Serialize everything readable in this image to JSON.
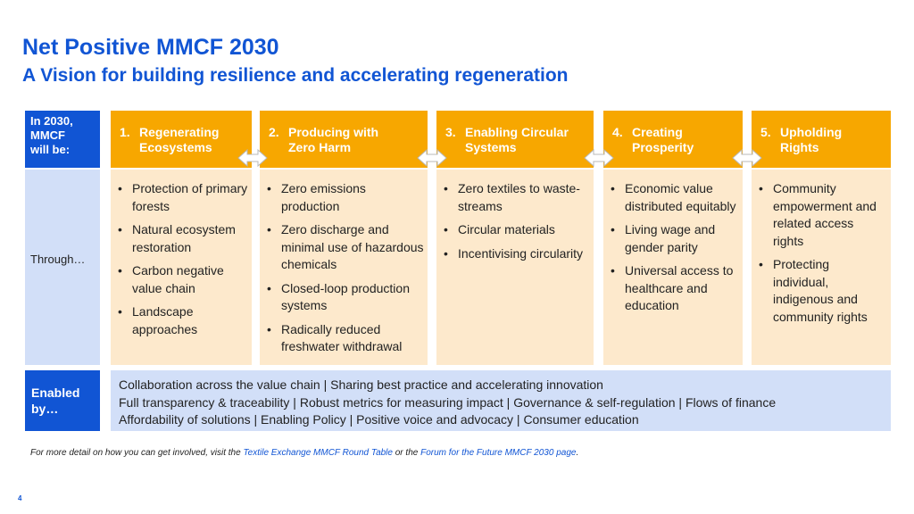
{
  "title": "Net Positive MMCF 2030",
  "subtitle": "A Vision for building resilience and accelerating regeneration",
  "side_labels": {
    "in_2030": "In 2030,\nMMCF\nwill be:",
    "through": "Through…",
    "enabled_by": "Enabled\nby…"
  },
  "pillars": [
    {
      "number": "1.",
      "title": "Regenerating\nEcosystems",
      "items": [
        "Protection of primary forests",
        "Natural ecosystem restoration",
        "Carbon negative value chain",
        "Landscape approaches"
      ]
    },
    {
      "number": "2.",
      "title": "Producing with\nZero Harm",
      "items": [
        "Zero emissions production",
        "Zero discharge and minimal use of hazardous chemicals",
        "Closed-loop production systems",
        "Radically reduced freshwater withdrawal"
      ]
    },
    {
      "number": "3.",
      "title": "Enabling Circular\nSystems",
      "items": [
        "Zero textiles to waste-streams",
        "Circular materials",
        "Incentivising circularity"
      ]
    },
    {
      "number": "4.",
      "title": "Creating\nProsperity",
      "items": [
        "Economic value distributed equitably",
        "Living wage and gender parity",
        "Universal access to healthcare and education"
      ]
    },
    {
      "number": "5.",
      "title": "Upholding\nRights",
      "items": [
        "Community empowerment and related access rights",
        "Protecting individual, indigenous and community rights"
      ]
    }
  ],
  "enablers": [
    "Collaboration across the value chain | Sharing best practice and accelerating innovation",
    "Full transparency & traceability | Robust metrics for measuring impact | Governance & self-regulation | Flows of finance",
    "Affordability of solutions | Enabling Policy | Positive voice and advocacy | Consumer education"
  ],
  "footnote": {
    "prefix": "For more detail on how you can get involved, visit the ",
    "link1": "Textile Exchange MMCF Round Table",
    "middle": " or the ",
    "link2": "Forum for the Future MMCF 2030 page",
    "suffix": "."
  },
  "page_number": "4",
  "colors": {
    "brand_blue": "#1155d4",
    "light_blue": "#d2dff8",
    "orange": "#f7a700",
    "light_orange": "#fde9cc"
  },
  "icons": {
    "arrow": "double-headed-arrow-icon"
  }
}
